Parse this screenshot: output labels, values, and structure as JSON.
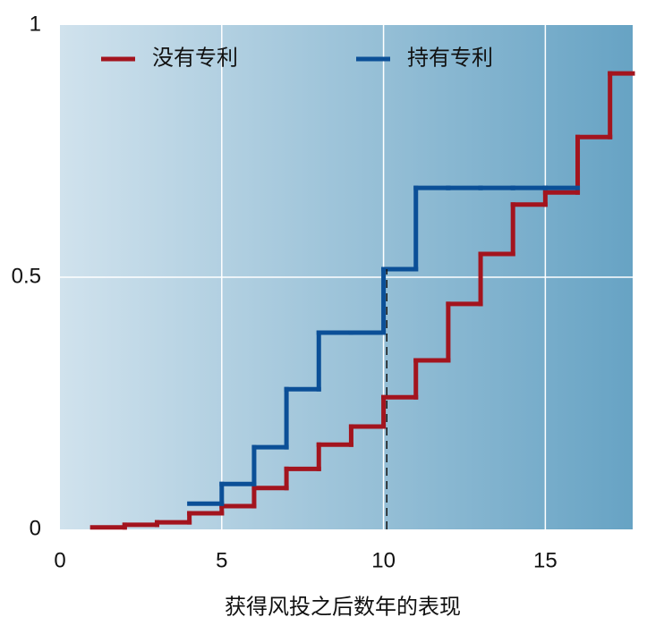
{
  "chart_data": {
    "type": "step",
    "xlabel": "获得风投之后数年的表现",
    "x": [
      1,
      2,
      3,
      4,
      5,
      6,
      7,
      8,
      9,
      10,
      11,
      12,
      13,
      14,
      15,
      16,
      17
    ],
    "series": [
      {
        "name": "没有专利",
        "color": "#a3141e",
        "values": [
          0.004,
          0.009,
          0.014,
          0.032,
          0.046,
          0.082,
          0.12,
          0.168,
          0.204,
          0.262,
          0.335,
          0.447,
          0.546,
          0.644,
          0.668,
          0.778,
          0.904
        ]
      },
      {
        "name": "持有专利",
        "color": "#0b4f97",
        "values": [
          null,
          null,
          null,
          0.051,
          0.09,
          0.163,
          0.278,
          0.39,
          0.39,
          0.516,
          0.677,
          0.677,
          0.677,
          0.677,
          0.677,
          null,
          null
        ]
      }
    ],
    "vline_x": 10.1,
    "xlim": [
      0,
      17.7
    ],
    "xticks": [
      0,
      5,
      10,
      15
    ],
    "ylim": [
      0,
      1
    ],
    "yticks": [
      0,
      0.5,
      1
    ],
    "grid": true
  }
}
